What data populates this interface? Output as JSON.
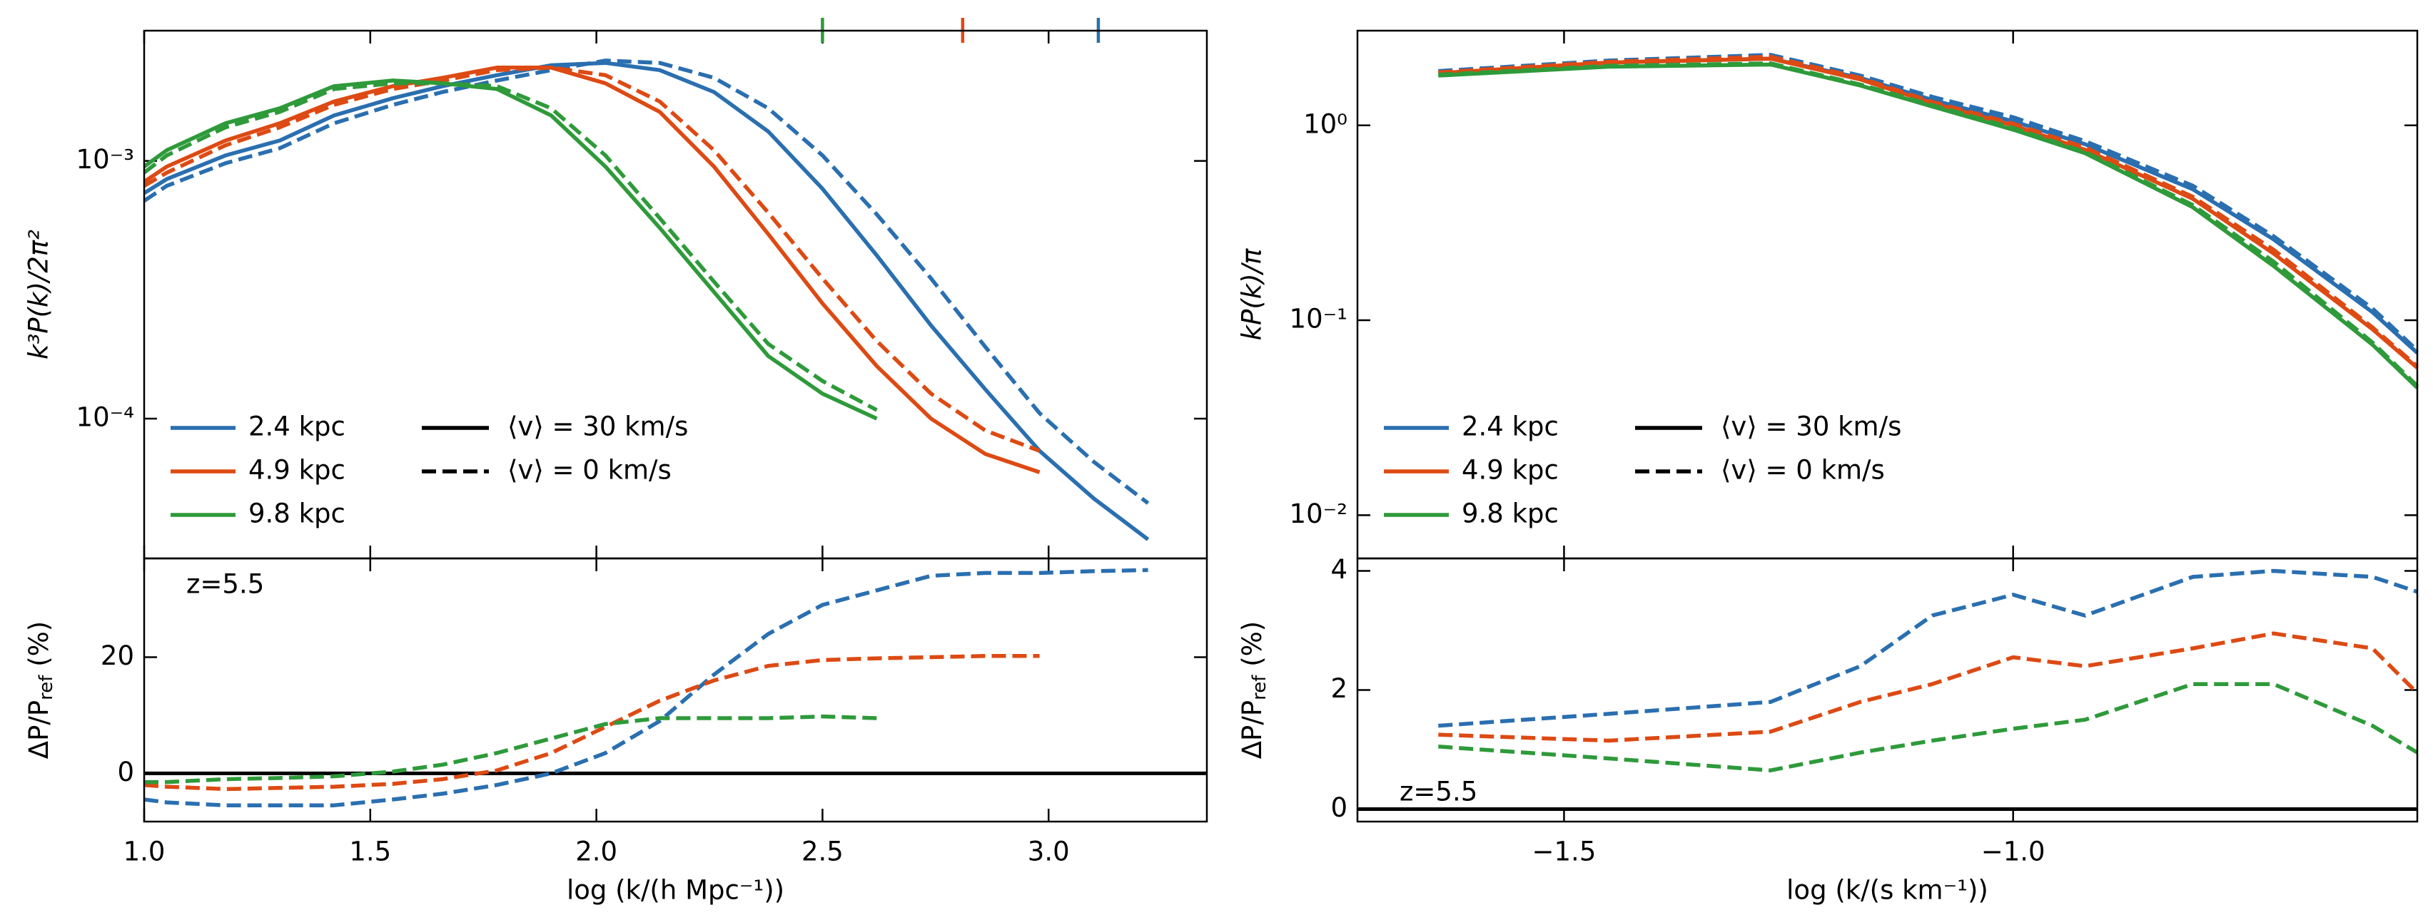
{
  "chart_data": [
    {
      "type": "line",
      "log_y": true,
      "ylabel": "k³P(k)/2π²",
      "xlim": [
        1.0,
        3.35
      ],
      "xticks": [
        {
          "value": 1,
          "label": "1.0"
        },
        1.5,
        {
          "value": 2,
          "label": "2.0"
        },
        2.5,
        {
          "value": 3,
          "label": "3.0"
        }
      ],
      "ylim": [
        2.87e-05,
        0.0032
      ],
      "yticks": [
        {
          "value": 0.001,
          "label": "10⁻³"
        },
        {
          "value": 0.0001,
          "label": "10⁻⁴"
        }
      ],
      "x": [
        1.0,
        1.05,
        1.18,
        1.3,
        1.42,
        1.55,
        1.66,
        1.78,
        1.9,
        2.02,
        2.14,
        2.26,
        2.38,
        2.5,
        2.62,
        2.74,
        2.86,
        2.98,
        3.1,
        3.22
      ],
      "series": [
        {
          "name": "2.4 kpc",
          "color": "#2a6fb0",
          "values": [
            0.00075,
            0.00085,
            0.00105,
            0.0012,
            0.0015,
            0.00175,
            0.00195,
            0.00215,
            0.00235,
            0.0024,
            0.00225,
            0.00185,
            0.0013,
            0.00078,
            0.00043,
            0.00023,
            0.00013,
            7.5e-05,
            4.9e-05,
            3.4e-05
          ],
          "values_dashed": [
            0.0007,
            0.0008,
            0.00098,
            0.00112,
            0.0014,
            0.00165,
            0.00185,
            0.00205,
            0.00225,
            0.00245,
            0.0024,
            0.0021,
            0.0016,
            0.00105,
            0.00062,
            0.00035,
            0.00019,
            0.000105,
            6.8e-05,
            4.7e-05
          ]
        },
        {
          "name": "4.9 kpc",
          "color": "#dd4a13",
          "values": [
            0.00083,
            0.00095,
            0.0012,
            0.0014,
            0.0017,
            0.00195,
            0.0021,
            0.0023,
            0.0023,
            0.002,
            0.00155,
            0.00095,
            0.00052,
            0.00028,
            0.00016,
            0.0001,
            7.3e-05,
            6.2e-05,
            null,
            null
          ],
          "values_dashed": [
            0.0008,
            0.0009,
            0.00115,
            0.00135,
            0.00165,
            0.0019,
            0.00205,
            0.00225,
            0.0023,
            0.00215,
            0.0017,
            0.0011,
            0.00063,
            0.00035,
            0.0002,
            0.000125,
            9e-05,
            7.5e-05,
            null,
            null
          ]
        },
        {
          "name": "9.8 kpc",
          "color": "#2e9a3a",
          "values": [
            0.00095,
            0.0011,
            0.0014,
            0.0016,
            0.00195,
            0.00205,
            0.002,
            0.0019,
            0.0015,
            0.00095,
            0.00055,
            0.00031,
            0.000175,
            0.000125,
            0.0001,
            null,
            null,
            null,
            null,
            null
          ],
          "values_dashed": [
            0.0009,
            0.00105,
            0.00135,
            0.00155,
            0.0019,
            0.002,
            0.002,
            0.00195,
            0.0016,
            0.00105,
            0.0006,
            0.00034,
            0.000195,
            0.00014,
            0.000108,
            null,
            null,
            null,
            null,
            null
          ]
        }
      ],
      "line_styles": [
        "⟨v⟩ = 30 km/s",
        "⟨v⟩ = 0 km/s"
      ],
      "resolution_marks": [
        {
          "value": 2.5,
          "color": "#2e9a3a"
        },
        {
          "value": 2.81,
          "color": "#dd4a13"
        },
        {
          "value": 3.11,
          "color": "#2a6fb0"
        }
      ],
      "legend": "lower left"
    },
    {
      "type": "line",
      "xlabel": "log (k/(h Mpc⁻¹))",
      "ylabel": {
        "text": "ΔP/P",
        "sub": "ref",
        "suffix": " (%)"
      },
      "xlim": [
        1.0,
        3.35
      ],
      "xticks": [
        {
          "value": 1,
          "label": "1.0"
        },
        1.5,
        {
          "value": 2,
          "label": "2.0"
        },
        2.5,
        {
          "value": 3,
          "label": "3.0"
        }
      ],
      "ylim": [
        -8.3,
        37
      ],
      "yticks": [
        0,
        20
      ],
      "baseline": 0,
      "annotation": "z=5.5",
      "x": [
        1.0,
        1.05,
        1.18,
        1.3,
        1.42,
        1.55,
        1.66,
        1.78,
        1.9,
        2.02,
        2.14,
        2.26,
        2.38,
        2.5,
        2.62,
        2.74,
        2.86,
        2.98,
        3.1,
        3.22
      ],
      "series": [
        {
          "color": "#2a6fb0",
          "values_dashed": [
            -4.5,
            -5,
            -5.5,
            -5.5,
            -5.5,
            -4.5,
            -3.5,
            -2,
            0,
            3.5,
            9,
            17,
            24,
            29,
            31.5,
            34,
            34.5,
            34.5,
            34.8,
            35
          ]
        },
        {
          "color": "#dd4a13",
          "values_dashed": [
            -2,
            -2.3,
            -2.7,
            -2.5,
            -2.3,
            -1.8,
            -1,
            0.5,
            3.5,
            8,
            12.5,
            16,
            18.5,
            19.5,
            19.8,
            20,
            20.2,
            20.2,
            null,
            null
          ]
        },
        {
          "color": "#2e9a3a",
          "values_dashed": [
            -1.5,
            -1.5,
            -1,
            -0.8,
            -0.5,
            0.3,
            1.5,
            3.5,
            6,
            8.5,
            9.5,
            9.5,
            9.5,
            9.8,
            9.5,
            null,
            null,
            null,
            null,
            null
          ]
        }
      ]
    },
    {
      "type": "line",
      "log_y": true,
      "ylabel": "kP(k)/π",
      "xlim": [
        -1.73,
        -0.55
      ],
      "xticks": [
        {
          "value": -1.5,
          "label": "−1.5"
        },
        {
          "value": -1,
          "label": "−1.0"
        }
      ],
      "ylim": [
        0.006,
        3.06
      ],
      "yticks": [
        {
          "value": 1,
          "label": "10⁰"
        },
        {
          "value": 0.1,
          "label": "10⁻¹"
        },
        {
          "value": 0.01,
          "label": "10⁻²"
        }
      ],
      "x": [
        -1.64,
        -1.45,
        -1.27,
        -1.17,
        -1.09,
        -1.0,
        -0.92,
        -0.8,
        -0.71,
        -0.6,
        -0.55
      ],
      "series": [
        {
          "name": "2.4 kpc",
          "color": "#2a6fb0",
          "values": [
            1.85,
            2.1,
            2.2,
            1.75,
            1.35,
            1.05,
            0.8,
            0.47,
            0.26,
            0.11,
            0.068
          ],
          "values_dashed": [
            1.9,
            2.15,
            2.3,
            1.8,
            1.4,
            1.1,
            0.83,
            0.49,
            0.27,
            0.115,
            0.07
          ]
        },
        {
          "name": "4.9 kpc",
          "color": "#dd4a13",
          "values": [
            1.85,
            2.1,
            2.2,
            1.72,
            1.3,
            1.0,
            0.75,
            0.42,
            0.22,
            0.09,
            0.057
          ],
          "values_dashed": [
            1.87,
            2.12,
            2.25,
            1.75,
            1.32,
            1.02,
            0.77,
            0.43,
            0.23,
            0.092,
            0.058
          ]
        },
        {
          "name": "9.8 kpc",
          "color": "#2e9a3a",
          "values": [
            1.8,
            2.0,
            2.05,
            1.6,
            1.25,
            0.95,
            0.72,
            0.38,
            0.19,
            0.075,
            0.045
          ],
          "values_dashed": [
            1.82,
            2.02,
            2.08,
            1.62,
            1.27,
            0.97,
            0.73,
            0.39,
            0.2,
            0.077,
            0.046
          ]
        }
      ],
      "line_styles": [
        "⟨v⟩ = 30 km/s",
        "⟨v⟩ = 0 km/s"
      ],
      "legend": "lower left"
    },
    {
      "type": "line",
      "xlabel": "log (k/(s km⁻¹))",
      "ylabel": {
        "text": "ΔP/P",
        "sub": "ref",
        "suffix": " (%)"
      },
      "xlim": [
        -1.73,
        -0.55
      ],
      "xticks": [
        {
          "value": -1.5,
          "label": "−1.5"
        },
        {
          "value": -1,
          "label": "−1.0"
        }
      ],
      "ylim": [
        -0.21,
        4.21
      ],
      "yticks": [
        0,
        2,
        4
      ],
      "baseline": 0,
      "annotation": "z=5.5",
      "x": [
        -1.64,
        -1.45,
        -1.27,
        -1.17,
        -1.09,
        -1.0,
        -0.92,
        -0.8,
        -0.71,
        -0.6,
        -0.55
      ],
      "series": [
        {
          "color": "#2a6fb0",
          "values_dashed": [
            1.4,
            1.6,
            1.8,
            2.4,
            3.25,
            3.6,
            3.25,
            3.9,
            4.0,
            3.9,
            3.65
          ]
        },
        {
          "color": "#dd4a13",
          "values_dashed": [
            1.25,
            1.15,
            1.3,
            1.8,
            2.1,
            2.55,
            2.4,
            2.7,
            2.95,
            2.7,
            1.95
          ]
        },
        {
          "color": "#2e9a3a",
          "values_dashed": [
            1.05,
            0.85,
            0.65,
            0.95,
            1.15,
            1.35,
            1.5,
            2.1,
            2.1,
            1.4,
            0.95
          ]
        }
      ]
    }
  ]
}
